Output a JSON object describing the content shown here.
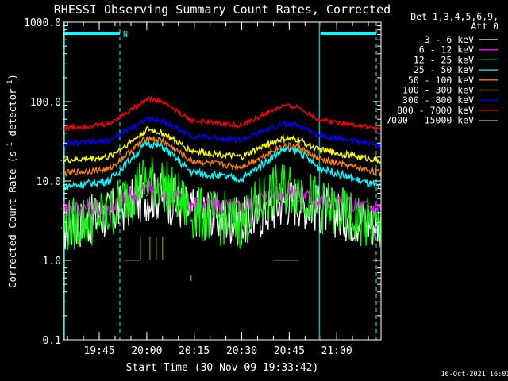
{
  "chart_data": {
    "type": "line",
    "title": "RHESSI Observing Summary Count Rates, Corrected",
    "xlabel": "Start Time (30-Nov-09 19:33:42)",
    "ylabel_main": "Corrected Count Rate (s",
    "ylabel_sup1": "-1",
    "ylabel_mid": " detector",
    "ylabel_sup2": "-1",
    "ylabel_end": ")",
    "yscale": "log",
    "xlim": [
      "19:33:42",
      "21:14:00"
    ],
    "ylim": [
      0.1,
      1000
    ],
    "x_ticks": [
      "19:45",
      "20:00",
      "20:15",
      "20:30",
      "20:45",
      "21:00"
    ],
    "y_ticks": [
      "0.1",
      "1.0",
      "10.0",
      "100.0",
      "1000.0"
    ],
    "legend_header": [
      "Det 1,3,4,5,6,9,",
      "Att 0"
    ],
    "legend_position": "right",
    "timestamp": "16-Oct-2021 16:01",
    "night_label": "N",
    "series": [
      {
        "name": "3 - 6 keV",
        "color": "#ffffff",
        "x": [
          "19:33",
          "19:48",
          "19:58",
          "20:00",
          "20:05",
          "20:14",
          "20:30",
          "20:38",
          "20:43",
          "20:48",
          "20:54",
          "21:14"
        ],
        "values": [
          2.5,
          3.8,
          6.0,
          6.5,
          6.4,
          4.2,
          3.0,
          4.2,
          5.5,
          5.6,
          4.5,
          2.8
        ]
      },
      {
        "name": "6 - 12 keV",
        "color": "#ff00ff",
        "x": [
          "19:33",
          "19:48",
          "19:58",
          "20:00",
          "20:05",
          "20:14",
          "20:30",
          "20:38",
          "20:43",
          "20:48",
          "20:54",
          "21:14"
        ],
        "values": [
          4.5,
          4.6,
          7.5,
          8.0,
          7.8,
          5.2,
          4.5,
          6.5,
          7.4,
          7.4,
          5.5,
          4.5
        ]
      },
      {
        "name": "12 - 25 keV",
        "color": "#00ff00",
        "x": [
          "19:33",
          "19:48",
          "19:58",
          "20:00",
          "20:05",
          "20:14",
          "20:30",
          "20:38",
          "20:43",
          "20:48",
          "20:54",
          "21:14"
        ],
        "values": [
          2.6,
          3.8,
          9.5,
          10.0,
          9.5,
          4.0,
          3.0,
          6.5,
          8.0,
          8.0,
          5.0,
          2.4
        ]
      },
      {
        "name": "25 - 50 keV",
        "color": "#00ffff",
        "x": [
          "19:33",
          "19:48",
          "19:58",
          "20:00",
          "20:05",
          "20:14",
          "20:30",
          "20:38",
          "20:43",
          "20:48",
          "20:54",
          "21:14"
        ],
        "values": [
          8.5,
          10.0,
          25.0,
          30.0,
          27.0,
          13.0,
          10.5,
          18.0,
          25.0,
          24.0,
          15.0,
          8.2
        ]
      },
      {
        "name": "50 - 100 keV",
        "color": "#ff8000",
        "x": [
          "19:33",
          "19:48",
          "19:58",
          "20:00",
          "20:05",
          "20:14",
          "20:30",
          "20:38",
          "20:43",
          "20:48",
          "20:54",
          "21:14"
        ],
        "values": [
          12.5,
          14.0,
          30.0,
          35.0,
          32.0,
          18.0,
          15.0,
          22.0,
          28.0,
          27.0,
          19.0,
          12.5
        ]
      },
      {
        "name": "100 - 300 keV",
        "color": "#ffff00",
        "x": [
          "19:33",
          "19:48",
          "19:58",
          "20:00",
          "20:05",
          "20:14",
          "20:30",
          "20:38",
          "20:43",
          "20:48",
          "20:54",
          "21:14"
        ],
        "values": [
          18.0,
          20.0,
          38.0,
          45.0,
          40.0,
          24.0,
          20.0,
          29.0,
          34.0,
          33.0,
          25.0,
          18.0
        ]
      },
      {
        "name": "300 - 800 keV",
        "color": "#0000ff",
        "x": [
          "19:33",
          "19:48",
          "19:58",
          "20:00",
          "20:05",
          "20:14",
          "20:30",
          "20:38",
          "20:43",
          "20:48",
          "20:54",
          "21:14"
        ],
        "values": [
          29.0,
          32.0,
          55.0,
          60.0,
          57.0,
          37.0,
          33.0,
          44.0,
          52.0,
          50.0,
          38.0,
          28.0
        ]
      },
      {
        "name": "800 - 7000 keV",
        "color": "#ff0000",
        "x": [
          "19:33",
          "19:48",
          "19:58",
          "20:00",
          "20:05",
          "20:14",
          "20:30",
          "20:38",
          "20:43",
          "20:48",
          "20:54",
          "21:14"
        ],
        "values": [
          46.0,
          52.0,
          95.0,
          110.0,
          100.0,
          58.0,
          50.0,
          72.0,
          88.0,
          85.0,
          60.0,
          45.0
        ]
      },
      {
        "name": "7000 - 15000 keV",
        "color": "#808000",
        "x": [
          "19:53",
          "19:58",
          "20:01",
          "20:03",
          "20:05",
          "20:14",
          "20:40",
          "20:48"
        ],
        "values": [
          1.0,
          1.0,
          1.0,
          1.0,
          1.0,
          0.6,
          1.0,
          1.0
        ]
      }
    ],
    "night_bands": [
      {
        "start": "19:33:42",
        "end": "19:51:30"
      },
      {
        "start": "20:55:00",
        "end": "21:12:30"
      }
    ],
    "saa_markers": [
      "19:34:00",
      "20:54:30"
    ]
  }
}
